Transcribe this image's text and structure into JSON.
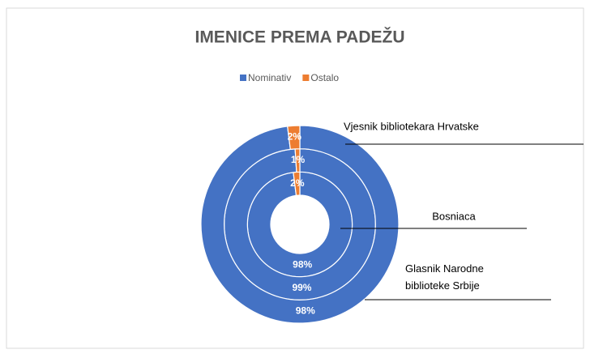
{
  "chart_data": {
    "type": "doughnut",
    "title": "IMENICE PREMA PADEŽU",
    "categories": [
      "Nominativ",
      "Ostalo"
    ],
    "colors": [
      "#4472c4",
      "#ed7d31"
    ],
    "series": [
      {
        "name": "Bosniaca",
        "values": [
          98,
          2
        ],
        "value_labels": [
          "98%",
          "2%"
        ]
      },
      {
        "name": "Glasnik Narodne biblioteke Srbije",
        "values": [
          99,
          1
        ],
        "value_labels": [
          "99%",
          "1%"
        ]
      },
      {
        "name": "Vjesnik bibliotekara Hrvatske",
        "values": [
          98,
          2
        ],
        "value_labels": [
          "98%",
          "2%"
        ]
      }
    ],
    "legend": "top"
  }
}
